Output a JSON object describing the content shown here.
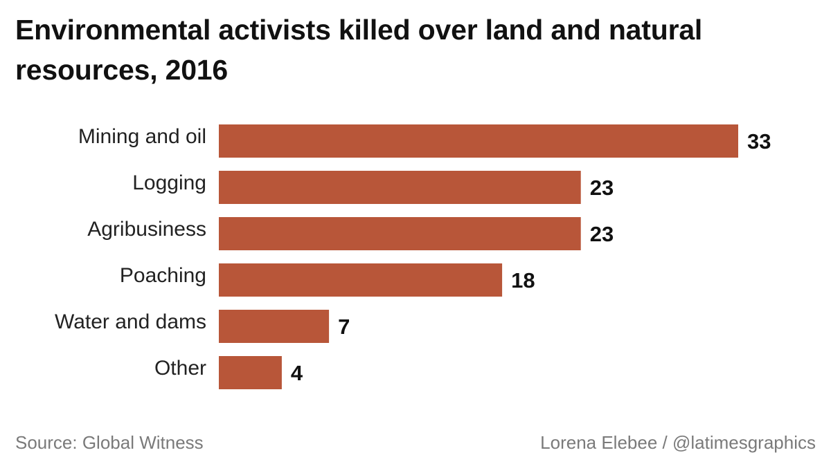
{
  "chart_data": {
    "type": "bar",
    "orientation": "horizontal",
    "title": "Environmental activists killed over land and natural resources, 2016",
    "categories": [
      "Mining and oil",
      "Logging",
      "Agribusiness",
      "Poaching",
      "Water and dams",
      "Other"
    ],
    "values": [
      33,
      23,
      23,
      18,
      7,
      4
    ],
    "xlim": [
      0,
      33
    ],
    "grid": false,
    "legend": "none",
    "bar_color": "#b85639"
  },
  "footer": {
    "source": "Source: Global Witness",
    "credit": "Lorena Elebee / @latimesgraphics"
  }
}
